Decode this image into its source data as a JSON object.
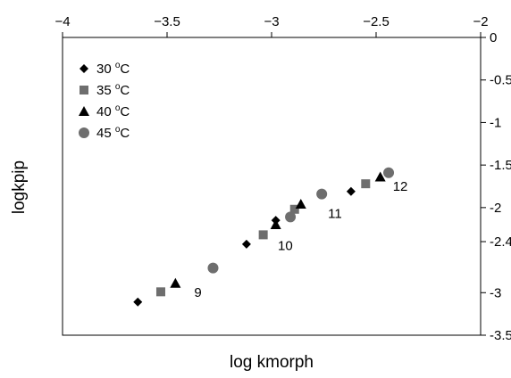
{
  "chart_data": {
    "type": "scatter",
    "title": "",
    "xlabel": "log kmorph",
    "ylabel": "logkpip",
    "xlim": [
      -4,
      -2
    ],
    "ylim": [
      -3.5,
      0
    ],
    "x_axis_position": "top",
    "y_axis_position": "right",
    "x_ticks": [
      -4,
      -3.5,
      -3,
      -2.5,
      -2
    ],
    "x_tick_labels": [
      "−4",
      "−3.5",
      "−3",
      "−2.5",
      "−2"
    ],
    "y_ticks": [
      0,
      -0.5,
      -1,
      -1.5,
      -2,
      -2.4,
      -3,
      -3.5
    ],
    "y_tick_labels": [
      "0",
      "-0.5",
      "-1",
      "-1.5",
      "-2",
      "-2.4",
      "-3",
      "-3.5"
    ],
    "grid": false,
    "legend_position": "top-left",
    "series": [
      {
        "name": "30 °C",
        "label_base": "30 ",
        "label_sup": "o",
        "label_unit": "C",
        "marker": "diamond",
        "color": "#000000",
        "points": [
          [
            -3.64,
            -3.11
          ],
          [
            -3.12,
            -2.43
          ],
          [
            -2.98,
            -2.15
          ],
          [
            -2.62,
            -1.81
          ]
        ]
      },
      {
        "name": "35 °C",
        "label_base": "35 ",
        "label_sup": "o",
        "label_unit": "C",
        "marker": "square",
        "color": "#6e6e6e",
        "points": [
          [
            -3.53,
            -2.99
          ],
          [
            -3.04,
            -2.32
          ],
          [
            -2.89,
            -2.02
          ],
          [
            -2.55,
            -1.72
          ]
        ]
      },
      {
        "name": "40 °C",
        "label_base": "40 ",
        "label_sup": "o",
        "label_unit": "C",
        "marker": "triangle",
        "color": "#000000",
        "points": [
          [
            -3.46,
            -2.89
          ],
          [
            -2.98,
            -2.2
          ],
          [
            -2.86,
            -1.96
          ],
          [
            -2.48,
            -1.64
          ]
        ]
      },
      {
        "name": "45 °C",
        "label_base": "45 ",
        "label_sup": "o",
        "label_unit": "C",
        "marker": "circle",
        "color": "#6e6e6e",
        "points": [
          [
            -3.28,
            -2.71
          ],
          [
            -2.91,
            -2.11
          ],
          [
            -2.76,
            -1.84
          ],
          [
            -2.44,
            -1.59
          ]
        ]
      }
    ],
    "annotations": [
      {
        "text": "9",
        "x": -3.37,
        "y": -3.05
      },
      {
        "text": "10",
        "x": -2.97,
        "y": -2.5
      },
      {
        "text": "11",
        "x": -2.73,
        "y": -2.12
      },
      {
        "text": "12",
        "x": -2.42,
        "y": -1.8
      }
    ]
  }
}
